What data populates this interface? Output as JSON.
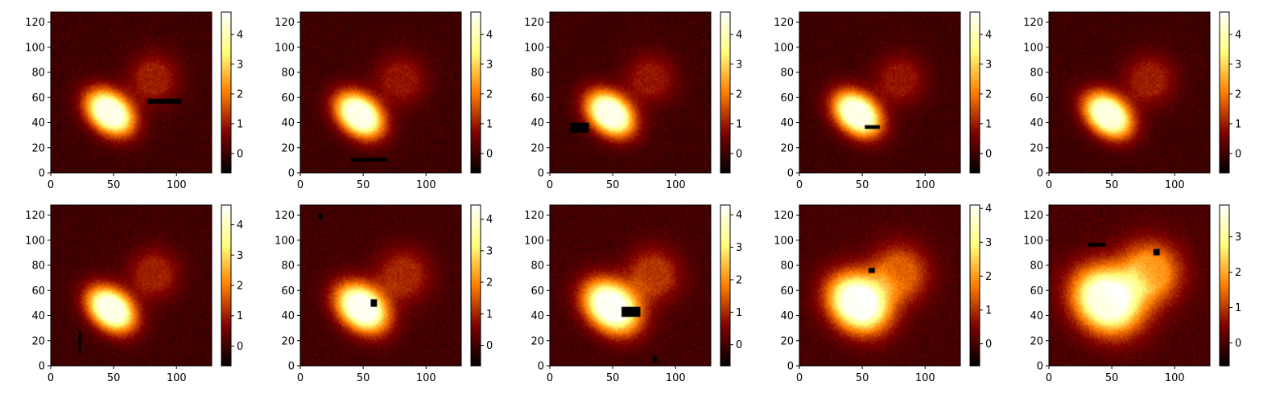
{
  "chart_data": {
    "type": "heatmap",
    "layout": {
      "rows": 2,
      "cols": 5
    },
    "colormap": "afmhot",
    "colormap_stops": [
      "#000000",
      "#7f0000",
      "#ff7f00",
      "#ffff7f",
      "#ffffff"
    ],
    "panels": [
      {
        "xlim": [
          0,
          128
        ],
        "ylim": [
          0,
          128
        ],
        "xticks": [
          0,
          50,
          100
        ],
        "yticks": [
          0,
          20,
          40,
          60,
          80,
          100,
          120
        ],
        "cbar_range": [
          -0.65,
          4.75
        ],
        "cbar_ticks": [
          0,
          1,
          2,
          3,
          4
        ],
        "blobs": [
          {
            "cx": 47,
            "cy": 48,
            "sx": 14,
            "sy": 10,
            "angle": -40,
            "amp": 4.5
          },
          {
            "cx": 82,
            "cy": 75,
            "sx": 14,
            "sy": 14,
            "angle": 0,
            "amp": 1.0
          }
        ],
        "masks": [
          [
            77,
            55,
            104,
            59
          ]
        ]
      },
      {
        "xlim": [
          0,
          128
        ],
        "ylim": [
          0,
          128
        ],
        "xticks": [
          0,
          50,
          100
        ],
        "yticks": [
          0,
          20,
          40,
          60,
          80,
          100,
          120
        ],
        "cbar_range": [
          -0.65,
          4.75
        ],
        "cbar_ticks": [
          0,
          1,
          2,
          3,
          4
        ],
        "blobs": [
          {
            "cx": 47,
            "cy": 46,
            "sx": 14,
            "sy": 10,
            "angle": -40,
            "amp": 4.5
          },
          {
            "cx": 80,
            "cy": 74,
            "sx": 14,
            "sy": 14,
            "angle": 0,
            "amp": 0.9
          }
        ],
        "masks": [
          [
            40,
            9,
            69,
            12
          ]
        ]
      },
      {
        "xlim": [
          0,
          128
        ],
        "ylim": [
          0,
          128
        ],
        "xticks": [
          0,
          50,
          100
        ],
        "yticks": [
          0,
          20,
          40,
          60,
          80,
          100,
          120
        ],
        "cbar_range": [
          -0.65,
          4.75
        ],
        "cbar_ticks": [
          0,
          1,
          2,
          3,
          4
        ],
        "blobs": [
          {
            "cx": 48,
            "cy": 47,
            "sx": 14,
            "sy": 10,
            "angle": -40,
            "amp": 4.5
          },
          {
            "cx": 80,
            "cy": 75,
            "sx": 14,
            "sy": 14,
            "angle": 0,
            "amp": 0.9
          }
        ],
        "masks": [
          [
            16,
            32,
            31,
            40
          ]
        ]
      },
      {
        "xlim": [
          0,
          128
        ],
        "ylim": [
          0,
          128
        ],
        "xticks": [
          0,
          50,
          100
        ],
        "yticks": [
          0,
          20,
          40,
          60,
          80,
          100,
          120
        ],
        "cbar_range": [
          -0.65,
          4.75
        ],
        "cbar_ticks": [
          0,
          1,
          2,
          3,
          4
        ],
        "blobs": [
          {
            "cx": 46,
            "cy": 47,
            "sx": 14,
            "sy": 10,
            "angle": -40,
            "amp": 4.5
          },
          {
            "cx": 80,
            "cy": 74,
            "sx": 14,
            "sy": 14,
            "angle": 0,
            "amp": 0.9
          }
        ],
        "masks": [
          [
            52,
            35,
            64,
            38
          ]
        ]
      },
      {
        "xlim": [
          0,
          128
        ],
        "ylim": [
          0,
          128
        ],
        "xticks": [
          0,
          50,
          100
        ],
        "yticks": [
          0,
          20,
          40,
          60,
          80,
          100,
          120
        ],
        "cbar_range": [
          -0.65,
          4.75
        ],
        "cbar_ticks": [
          0,
          1,
          2,
          3,
          4
        ],
        "blobs": [
          {
            "cx": 47,
            "cy": 46,
            "sx": 14,
            "sy": 10,
            "angle": -40,
            "amp": 4.4
          },
          {
            "cx": 80,
            "cy": 74,
            "sx": 14,
            "sy": 14,
            "angle": 0,
            "amp": 1.0
          }
        ],
        "masks": []
      },
      {
        "xlim": [
          0,
          128
        ],
        "ylim": [
          0,
          128
        ],
        "xticks": [
          0,
          50,
          100
        ],
        "yticks": [
          0,
          20,
          40,
          60,
          80,
          100,
          120
        ],
        "cbar_range": [
          -0.65,
          4.65
        ],
        "cbar_ticks": [
          0,
          1,
          2,
          3,
          4
        ],
        "blobs": [
          {
            "cx": 48,
            "cy": 45,
            "sx": 14,
            "sy": 10,
            "angle": -40,
            "amp": 4.4
          },
          {
            "cx": 82,
            "cy": 73,
            "sx": 14,
            "sy": 14,
            "angle": 0,
            "amp": 1.0
          }
        ],
        "masks": [
          [
            22,
            10,
            24,
            28
          ]
        ]
      },
      {
        "xlim": [
          0,
          128
        ],
        "ylim": [
          0,
          128
        ],
        "xticks": [
          0,
          50,
          100
        ],
        "yticks": [
          0,
          20,
          40,
          60,
          80,
          100,
          120
        ],
        "cbar_range": [
          -0.65,
          4.45
        ],
        "cbar_ticks": [
          0,
          1,
          2,
          3,
          4
        ],
        "blobs": [
          {
            "cx": 49,
            "cy": 46,
            "sx": 15,
            "sy": 11,
            "angle": -40,
            "amp": 4.3
          },
          {
            "cx": 82,
            "cy": 72,
            "sx": 15,
            "sy": 15,
            "angle": 0,
            "amp": 1.0
          }
        ],
        "masks": [
          [
            56,
            47,
            61,
            53
          ],
          [
            14,
            117,
            18,
            121
          ]
        ]
      },
      {
        "xlim": [
          0,
          128
        ],
        "ylim": [
          0,
          128
        ],
        "xticks": [
          0,
          50,
          100
        ],
        "yticks": [
          0,
          20,
          40,
          60,
          80,
          100,
          120
        ],
        "cbar_range": [
          -0.65,
          4.3
        ],
        "cbar_ticks": [
          0,
          1,
          2,
          3,
          4
        ],
        "blobs": [
          {
            "cx": 49,
            "cy": 47,
            "sx": 16,
            "sy": 12,
            "angle": -40,
            "amp": 4.2
          },
          {
            "cx": 82,
            "cy": 72,
            "sx": 15,
            "sy": 15,
            "angle": 0,
            "amp": 1.1
          }
        ],
        "masks": [
          [
            57,
            39,
            72,
            47
          ],
          [
            82,
            2,
            85,
            8
          ]
        ]
      },
      {
        "xlim": [
          0,
          128
        ],
        "ylim": [
          0,
          128
        ],
        "xticks": [
          0,
          50,
          100
        ],
        "yticks": [
          0,
          20,
          40,
          60,
          80,
          100,
          120
        ],
        "cbar_range": [
          -0.65,
          4.1
        ],
        "cbar_ticks": [
          0,
          1,
          2,
          3,
          4
        ],
        "blobs": [
          {
            "cx": 47,
            "cy": 50,
            "sx": 17,
            "sy": 14,
            "angle": -40,
            "amp": 4.0
          },
          {
            "cx": 79,
            "cy": 73,
            "sx": 16,
            "sy": 16,
            "angle": 0,
            "amp": 1.4
          }
        ],
        "masks": [
          [
            55,
            74,
            60,
            78
          ]
        ]
      },
      {
        "xlim": [
          0,
          128
        ],
        "ylim": [
          0,
          128
        ],
        "xticks": [
          0,
          50,
          100
        ],
        "yticks": [
          0,
          20,
          40,
          60,
          80,
          100,
          120
        ],
        "cbar_range": [
          -0.65,
          3.9
        ],
        "cbar_ticks": [
          0,
          1,
          2,
          3
        ],
        "blobs": [
          {
            "cx": 46,
            "cy": 52,
            "sx": 19,
            "sy": 16,
            "angle": -40,
            "amp": 3.6
          },
          {
            "cx": 80,
            "cy": 74,
            "sx": 17,
            "sy": 17,
            "angle": 0,
            "amp": 1.8
          }
        ],
        "masks": [
          [
            31,
            95,
            45,
            98
          ],
          [
            83,
            88,
            88,
            93
          ]
        ]
      }
    ]
  }
}
